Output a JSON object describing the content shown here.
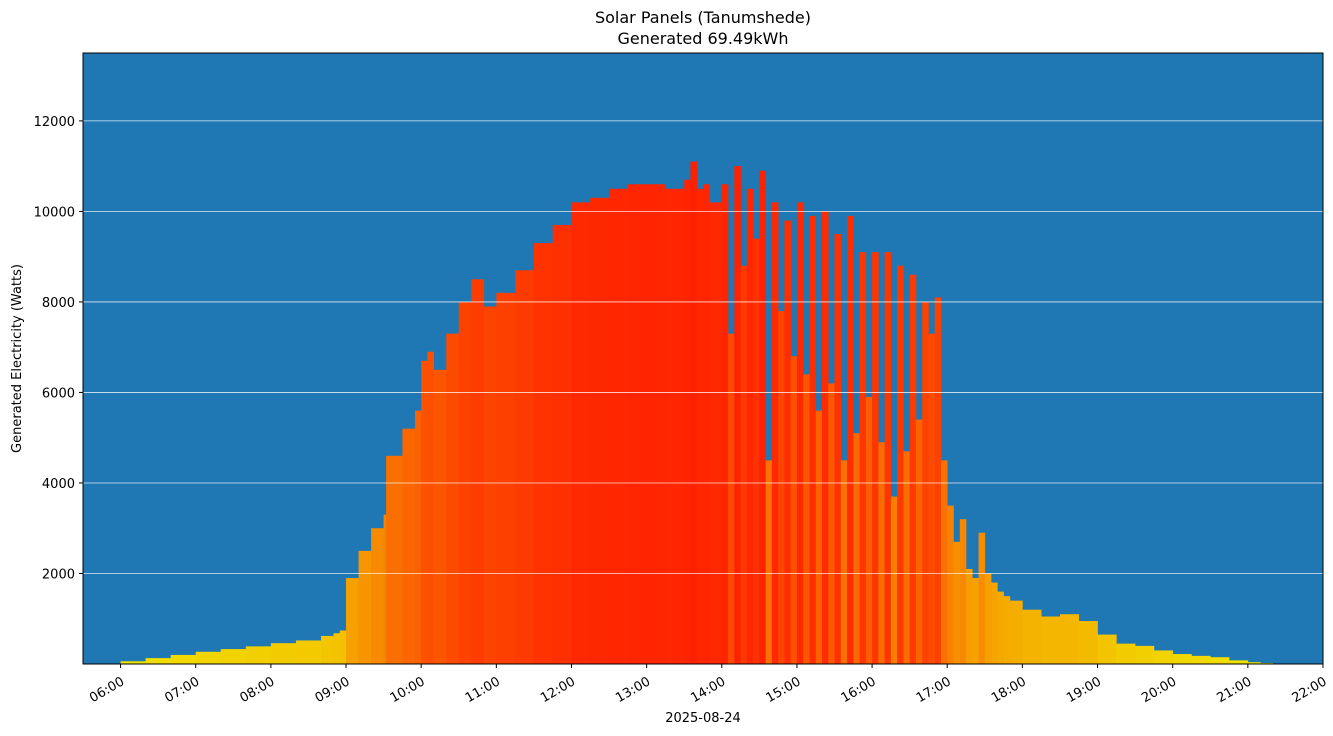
{
  "chart_data": {
    "type": "bar",
    "title": "Solar Panels (Tanumshede)",
    "subtitle": "Generated 69.49kWh",
    "xlabel": "2025-08-24",
    "ylabel": "Generated Electricity (Watts)",
    "ylim": [
      0,
      13500
    ],
    "xlim": [
      "05:30",
      "22:00"
    ],
    "x_ticks": [
      "06:00",
      "07:00",
      "08:00",
      "09:00",
      "10:00",
      "11:00",
      "12:00",
      "13:00",
      "14:00",
      "15:00",
      "16:00",
      "17:00",
      "18:00",
      "19:00",
      "20:00",
      "21:00",
      "22:00"
    ],
    "y_ticks": [
      2000,
      4000,
      6000,
      8000,
      10000,
      12000
    ],
    "grid": "horizontal",
    "background_color": "#1f77b4",
    "colormap": [
      "#f0f000",
      "#ff2000"
    ],
    "series": [
      {
        "x": [
          "06:00",
          "06:20",
          "06:40",
          "07:00",
          "07:20",
          "07:40",
          "08:00",
          "08:20",
          "08:40",
          "08:50",
          "08:55",
          "09:00",
          "09:10",
          "09:20",
          "09:30",
          "09:32",
          "09:45",
          "09:55",
          "10:00",
          "10:05",
          "10:10",
          "10:20",
          "10:30",
          "10:40",
          "10:50",
          "11:00",
          "11:15",
          "11:30",
          "11:45",
          "12:00",
          "12:15",
          "12:30",
          "12:45",
          "13:00",
          "13:15",
          "13:30",
          "13:35",
          "13:40",
          "13:45",
          "13:50",
          "14:00",
          "14:05",
          "14:10",
          "14:15",
          "14:20",
          "14:25",
          "14:30",
          "14:35",
          "14:40",
          "14:45",
          "14:50",
          "14:55",
          "15:00",
          "15:05",
          "15:10",
          "15:15",
          "15:20",
          "15:25",
          "15:30",
          "15:35",
          "15:40",
          "15:45",
          "15:50",
          "15:55",
          "16:00",
          "16:05",
          "16:10",
          "16:15",
          "16:20",
          "16:25",
          "16:30",
          "16:35",
          "16:40",
          "16:45",
          "16:50",
          "16:55",
          "17:00",
          "17:05",
          "17:10",
          "17:15",
          "17:20",
          "17:25",
          "17:30",
          "17:35",
          "17:40",
          "17:45",
          "17:50",
          "18:00",
          "18:15",
          "18:30",
          "18:45",
          "19:00",
          "19:15",
          "19:30",
          "19:45",
          "20:00",
          "20:15",
          "20:30",
          "20:45",
          "21:00",
          "21:10"
        ],
        "values": [
          60,
          130,
          200,
          270,
          330,
          390,
          460,
          520,
          620,
          680,
          740,
          1900,
          2500,
          3000,
          3300,
          4600,
          5200,
          5600,
          6700,
          6900,
          6500,
          7300,
          8000,
          8500,
          7900,
          8200,
          8700,
          9300,
          9700,
          10200,
          10300,
          10500,
          10600,
          10600,
          10500,
          10700,
          11100,
          10500,
          10600,
          10200,
          10600,
          7300,
          11000,
          8800,
          10500,
          9400,
          10900,
          4500,
          10200,
          7800,
          9800,
          6800,
          10200,
          6400,
          9900,
          5600,
          10000,
          6200,
          9500,
          4500,
          9900,
          5100,
          9100,
          5900,
          9100,
          4900,
          9100,
          3700,
          8800,
          4700,
          8600,
          5400,
          8000,
          7300,
          8100,
          4500,
          3500,
          2700,
          3200,
          2100,
          1900,
          2900,
          2000,
          1800,
          1600,
          1500,
          1400,
          1200,
          1050,
          1100,
          950,
          650,
          450,
          400,
          300,
          220,
          180,
          150,
          80,
          40,
          20
        ]
      }
    ]
  }
}
